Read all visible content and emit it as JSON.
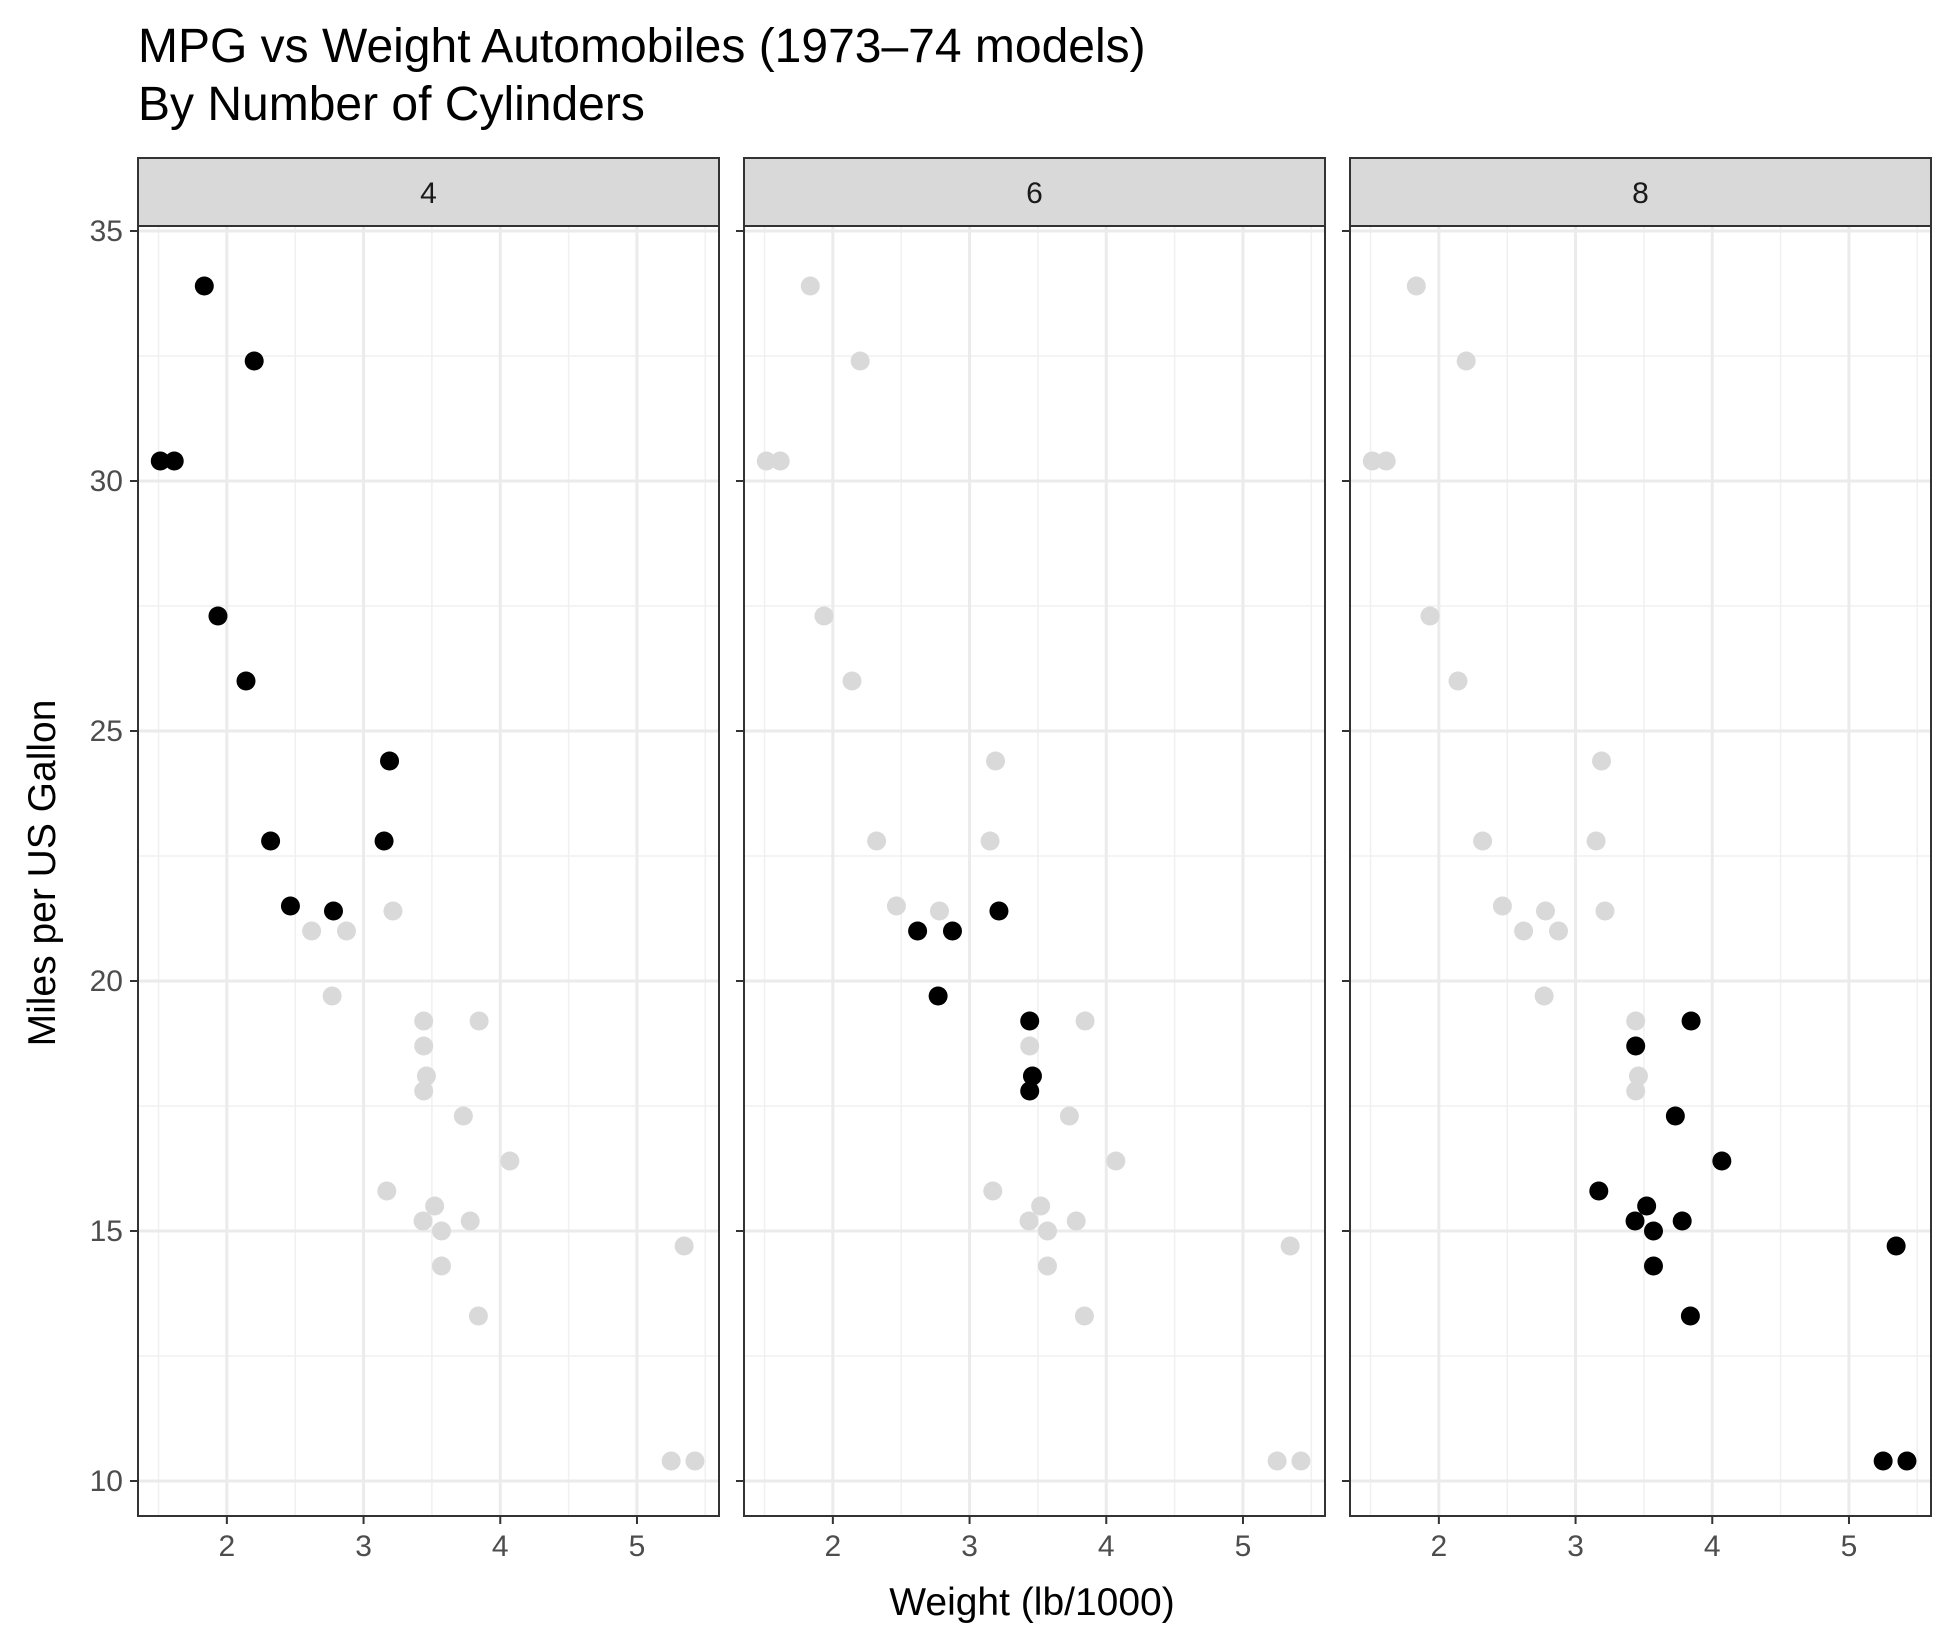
{
  "chart_data": {
    "type": "scatter",
    "title": "MPG vs Weight Automobiles (1973–74 models)",
    "subtitle": "By Number of Cylinders",
    "xlabel": "Weight (lb/1000)",
    "ylabel": "Miles per US Gallon",
    "xlim": [
      1.35,
      5.6
    ],
    "ylim": [
      9.3,
      35.1
    ],
    "x_ticks": [
      2,
      3,
      4,
      5
    ],
    "y_ticks": [
      10,
      15,
      20,
      25,
      30,
      35
    ],
    "grid": true,
    "facet_variable": "cyl",
    "facets": [
      "4",
      "6",
      "8"
    ],
    "highlight_color": "#000000",
    "background_point_color": "#d9d9d9",
    "strip_fill": "#d9d9d9",
    "points": [
      {
        "x": 2.62,
        "y": 21.0,
        "cyl": "6"
      },
      {
        "x": 2.875,
        "y": 21.0,
        "cyl": "6"
      },
      {
        "x": 2.32,
        "y": 22.8,
        "cyl": "4"
      },
      {
        "x": 3.215,
        "y": 21.4,
        "cyl": "6"
      },
      {
        "x": 3.44,
        "y": 18.7,
        "cyl": "8"
      },
      {
        "x": 3.46,
        "y": 18.1,
        "cyl": "6"
      },
      {
        "x": 3.57,
        "y": 14.3,
        "cyl": "8"
      },
      {
        "x": 3.19,
        "y": 24.4,
        "cyl": "4"
      },
      {
        "x": 3.15,
        "y": 22.8,
        "cyl": "4"
      },
      {
        "x": 3.44,
        "y": 19.2,
        "cyl": "6"
      },
      {
        "x": 3.44,
        "y": 17.8,
        "cyl": "6"
      },
      {
        "x": 4.07,
        "y": 16.4,
        "cyl": "8"
      },
      {
        "x": 3.73,
        "y": 17.3,
        "cyl": "8"
      },
      {
        "x": 3.78,
        "y": 15.2,
        "cyl": "8"
      },
      {
        "x": 5.25,
        "y": 10.4,
        "cyl": "8"
      },
      {
        "x": 5.424,
        "y": 10.4,
        "cyl": "8"
      },
      {
        "x": 5.345,
        "y": 14.7,
        "cyl": "8"
      },
      {
        "x": 2.2,
        "y": 32.4,
        "cyl": "4"
      },
      {
        "x": 1.615,
        "y": 30.4,
        "cyl": "4"
      },
      {
        "x": 1.835,
        "y": 33.9,
        "cyl": "4"
      },
      {
        "x": 2.465,
        "y": 21.5,
        "cyl": "4"
      },
      {
        "x": 3.52,
        "y": 15.5,
        "cyl": "8"
      },
      {
        "x": 3.435,
        "y": 15.2,
        "cyl": "8"
      },
      {
        "x": 3.84,
        "y": 13.3,
        "cyl": "8"
      },
      {
        "x": 3.845,
        "y": 19.2,
        "cyl": "8"
      },
      {
        "x": 1.935,
        "y": 27.3,
        "cyl": "4"
      },
      {
        "x": 2.14,
        "y": 26.0,
        "cyl": "4"
      },
      {
        "x": 1.513,
        "y": 30.4,
        "cyl": "4"
      },
      {
        "x": 3.17,
        "y": 15.8,
        "cyl": "8"
      },
      {
        "x": 2.77,
        "y": 19.7,
        "cyl": "6"
      },
      {
        "x": 3.57,
        "y": 15.0,
        "cyl": "8"
      },
      {
        "x": 2.78,
        "y": 21.4,
        "cyl": "4"
      }
    ]
  }
}
